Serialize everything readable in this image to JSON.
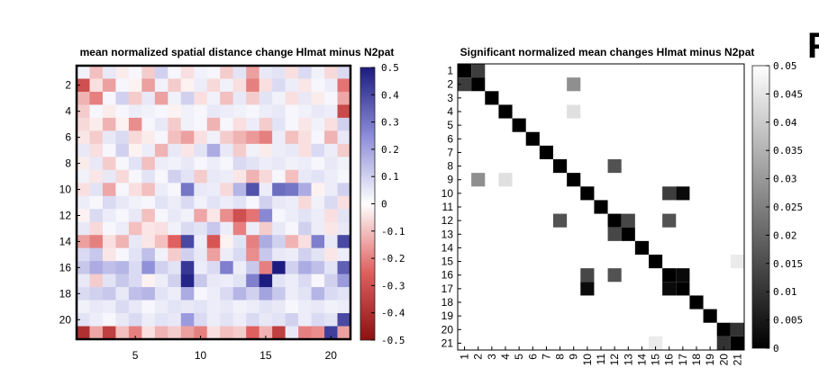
{
  "figure_letter": "F",
  "chart_data": [
    {
      "type": "heatmap",
      "title": "mean normalized spatial distance change Hlmat minus N2pat",
      "n": 21,
      "x_ticks": [
        5,
        10,
        15,
        20
      ],
      "y_ticks": [
        2,
        4,
        6,
        8,
        10,
        12,
        14,
        16,
        18,
        20
      ],
      "clim": [
        -0.5,
        0.5
      ],
      "colormap": "red-white-blue (negative red, positive blue)",
      "colorbar_ticks": [
        {
          "v": 0.5,
          "label": "0.5"
        },
        {
          "v": 0.4,
          "label": "0.4"
        },
        {
          "v": 0.3,
          "label": "0.3"
        },
        {
          "v": 0.2,
          "label": "0.2"
        },
        {
          "v": 0.1,
          "label": "0.1"
        },
        {
          "v": 0,
          "label": "0"
        },
        {
          "v": -0.1,
          "label": "-0.1"
        },
        {
          "v": -0.2,
          "label": "-0.2"
        },
        {
          "v": -0.3,
          "label": "-0.3"
        },
        {
          "v": -0.4,
          "label": "-0.4"
        },
        {
          "v": -0.5,
          "label": "-0.5"
        }
      ],
      "values": [
        [
          0.03,
          -0.1,
          0.05,
          -0.03,
          0.02,
          -0.08,
          0.1,
          0.02,
          -0.05,
          0.03,
          0.02,
          -0.08,
          0.06,
          -0.15,
          0.05,
          0.06,
          -0.05,
          0.08,
          0.03,
          -0.06,
          0.08
        ],
        [
          -0.3,
          -0.05,
          -0.15,
          0.02,
          -0.02,
          -0.15,
          0.03,
          -0.08,
          -0.02,
          0.04,
          -0.06,
          0.03,
          -0.05,
          -0.2,
          -0.05,
          0.08,
          0.04,
          -0.04,
          0.02,
          0.04,
          -0.22
        ],
        [
          -0.12,
          -0.2,
          0.02,
          0.1,
          -0.08,
          0.05,
          -0.15,
          0.03,
          0.1,
          -0.05,
          0.03,
          -0.1,
          0.05,
          -0.08,
          0.06,
          0.03,
          -0.05,
          0.05,
          -0.03,
          0.02,
          -0.14
        ],
        [
          -0.08,
          0.02,
          -0.03,
          0.02,
          0.04,
          0.03,
          0.02,
          -0.02,
          0.03,
          0.02,
          0.05,
          0.04,
          0.03,
          0.02,
          0.04,
          0.05,
          0.02,
          0.03,
          0.05,
          0.04,
          -0.32
        ],
        [
          -0.06,
          -0.03,
          -0.12,
          -0.02,
          -0.18,
          0.02,
          0.05,
          -0.08,
          0.03,
          0.02,
          -0.12,
          0.02,
          -0.05,
          0.04,
          -0.08,
          0.06,
          0.02,
          -0.04,
          0.03,
          -0.05,
          0.1
        ],
        [
          -0.04,
          -0.08,
          0.05,
          0.08,
          -0.06,
          -0.03,
          0.02,
          -0.1,
          -0.15,
          -0.05,
          0.03,
          -0.08,
          -0.12,
          -0.16,
          -0.2,
          0.04,
          -0.1,
          -0.05,
          0.02,
          -0.12,
          0.05
        ],
        [
          0.05,
          -0.05,
          0.02,
          0.1,
          -0.02,
          0.04,
          -0.12,
          0.05,
          -0.04,
          0.06,
          0.18,
          0.05,
          -0.08,
          0.03,
          -0.03,
          0.04,
          0.05,
          -0.05,
          0.08,
          0.04,
          -0.08
        ],
        [
          -0.03,
          0.05,
          -0.08,
          0.02,
          0.06,
          -0.1,
          0.04,
          0.03,
          0.05,
          0.02,
          0.04,
          0.02,
          0.08,
          0.06,
          0.04,
          0.05,
          0.03,
          0.04,
          0.02,
          0.05,
          0.03
        ],
        [
          0.03,
          -0.04,
          0.05,
          -0.06,
          0.02,
          0.06,
          0.02,
          0.1,
          0.06,
          -0.08,
          0.05,
          0.04,
          -0.04,
          -0.12,
          -0.06,
          0.02,
          -0.1,
          0.05,
          0.06,
          0.04,
          0.02
        ],
        [
          -0.05,
          0.06,
          -0.14,
          0.02,
          -0.05,
          -0.1,
          0.04,
          0.02,
          0.3,
          0.05,
          0.04,
          -0.06,
          0.16,
          0.38,
          0.04,
          0.32,
          0.3,
          0.18,
          -0.02,
          0.04,
          0.1
        ],
        [
          0.04,
          0.02,
          0.08,
          0.05,
          0.03,
          0.02,
          0.06,
          0.04,
          0.08,
          0.03,
          0.06,
          0.04,
          0.06,
          0.02,
          0.1,
          0.05,
          0.04,
          -0.06,
          0.03,
          0.08,
          -0.05
        ],
        [
          -0.02,
          0.08,
          0.04,
          0.02,
          0.05,
          -0.1,
          0.02,
          0.05,
          0.03,
          -0.14,
          -0.04,
          -0.18,
          -0.3,
          -0.22,
          0.26,
          0.02,
          0.04,
          0.06,
          0.04,
          -0.05,
          0.06
        ],
        [
          0.05,
          -0.06,
          0.02,
          0.04,
          -0.1,
          -0.04,
          -0.05,
          0.03,
          0.08,
          0.06,
          0.12,
          0.04,
          -0.2,
          0.04,
          -0.08,
          0.05,
          0.02,
          0.1,
          0.04,
          -0.04,
          0.05
        ],
        [
          -0.15,
          -0.2,
          -0.05,
          -0.12,
          0.05,
          -0.04,
          -0.1,
          -0.25,
          0.4,
          0.04,
          -0.28,
          -0.02,
          0.06,
          -0.2,
          0.18,
          0.1,
          -0.12,
          -0.05,
          0.28,
          0.05,
          0.4
        ],
        [
          0.08,
          0.12,
          -0.04,
          0.02,
          0.06,
          0.14,
          0.03,
          -0.08,
          0.1,
          0.05,
          -0.15,
          0.04,
          0.08,
          -0.18,
          0.12,
          0.05,
          0.04,
          0.1,
          0.06,
          -0.04,
          0.04
        ],
        [
          0.12,
          0.18,
          0.14,
          0.16,
          0.08,
          0.24,
          0.1,
          0.06,
          0.44,
          0.04,
          0.08,
          0.28,
          0.04,
          0.12,
          -0.2,
          0.56,
          0.1,
          0.18,
          0.14,
          0.06,
          0.35
        ],
        [
          0.05,
          -0.08,
          0.06,
          0.12,
          0.08,
          -0.02,
          0.04,
          0.1,
          0.48,
          0.12,
          0.05,
          0.04,
          0.06,
          0.28,
          0.52,
          0.06,
          0.04,
          0.08,
          0.02,
          0.1,
          0.22
        ],
        [
          0.08,
          0.1,
          0.12,
          0.05,
          0.14,
          0.16,
          0.06,
          0.04,
          0.18,
          0.02,
          0.04,
          0.08,
          0.16,
          0.1,
          0.2,
          0.12,
          0.04,
          0.06,
          0.16,
          0.08,
          0.06
        ],
        [
          0.03,
          0.05,
          0.04,
          0.08,
          0.05,
          0.02,
          0.04,
          0.06,
          0.05,
          0.06,
          0.04,
          0.05,
          0.03,
          0.04,
          0.06,
          0.05,
          0.02,
          0.04,
          0.05,
          0.03,
          0.04
        ],
        [
          0.06,
          0.04,
          0.02,
          0.05,
          0.08,
          0.04,
          0.06,
          0.05,
          0.22,
          0.08,
          0.04,
          0.06,
          0.04,
          0.08,
          0.05,
          0.06,
          0.1,
          0.04,
          0.08,
          0.06,
          0.4
        ],
        [
          -0.4,
          -0.14,
          -0.35,
          -0.1,
          -0.2,
          -0.05,
          -0.12,
          -0.08,
          -0.15,
          -0.2,
          -0.05,
          -0.1,
          -0.08,
          -0.25,
          -0.12,
          -0.35,
          0.05,
          -0.2,
          -0.18,
          0.42,
          -0.15
        ]
      ]
    },
    {
      "type": "heatmap",
      "title": "Significant normalized mean changes Hlmat minus N2pat",
      "n": 21,
      "x_ticks": [
        "1",
        "2",
        "3",
        "4",
        "5",
        "6",
        "7",
        "8",
        "9",
        "10",
        "11",
        "12",
        "13",
        "14",
        "15",
        "16",
        "17",
        "18",
        "19",
        "20",
        "21"
      ],
      "y_ticks": [
        "1",
        "2",
        "3",
        "4",
        "5",
        "6",
        "7",
        "8",
        "9",
        "10",
        "11",
        "12",
        "13",
        "14",
        "15",
        "16",
        "17",
        "18",
        "19",
        "20",
        "21"
      ],
      "clim": [
        0,
        0.05
      ],
      "colormap": "gray (0 black, 0.05 white); non-significant cells white",
      "colorbar_ticks": [
        {
          "v": 0.05,
          "label": "0.05"
        },
        {
          "v": 0.045,
          "label": "0.045"
        },
        {
          "v": 0.04,
          "label": "0.04"
        },
        {
          "v": 0.035,
          "label": "0.035"
        },
        {
          "v": 0.03,
          "label": "0.03"
        },
        {
          "v": 0.025,
          "label": "0.025"
        },
        {
          "v": 0.02,
          "label": "0.02"
        },
        {
          "v": 0.015,
          "label": "0.015"
        },
        {
          "v": 0.01,
          "label": "0.01"
        },
        {
          "v": 0.005,
          "label": "0.005"
        },
        {
          "v": 0,
          "label": "0"
        }
      ],
      "significant_cells": [
        {
          "row": 1,
          "col": 1,
          "p": 0.0
        },
        {
          "row": 1,
          "col": 2,
          "p": 0.012
        },
        {
          "row": 2,
          "col": 1,
          "p": 0.012
        },
        {
          "row": 2,
          "col": 2,
          "p": 0.0
        },
        {
          "row": 2,
          "col": 9,
          "p": 0.028
        },
        {
          "row": 3,
          "col": 3,
          "p": 0.0
        },
        {
          "row": 4,
          "col": 4,
          "p": 0.0
        },
        {
          "row": 4,
          "col": 9,
          "p": 0.044
        },
        {
          "row": 5,
          "col": 5,
          "p": 0.0
        },
        {
          "row": 6,
          "col": 6,
          "p": 0.0
        },
        {
          "row": 7,
          "col": 7,
          "p": 0.0
        },
        {
          "row": 8,
          "col": 8,
          "p": 0.0
        },
        {
          "row": 8,
          "col": 12,
          "p": 0.016
        },
        {
          "row": 9,
          "col": 2,
          "p": 0.028
        },
        {
          "row": 9,
          "col": 4,
          "p": 0.044
        },
        {
          "row": 9,
          "col": 9,
          "p": 0.0
        },
        {
          "row": 10,
          "col": 10,
          "p": 0.0
        },
        {
          "row": 10,
          "col": 16,
          "p": 0.012
        },
        {
          "row": 10,
          "col": 17,
          "p": 0.002
        },
        {
          "row": 11,
          "col": 11,
          "p": 0.0
        },
        {
          "row": 12,
          "col": 8,
          "p": 0.016
        },
        {
          "row": 12,
          "col": 12,
          "p": 0.0
        },
        {
          "row": 12,
          "col": 13,
          "p": 0.014
        },
        {
          "row": 12,
          "col": 16,
          "p": 0.016
        },
        {
          "row": 13,
          "col": 12,
          "p": 0.014
        },
        {
          "row": 13,
          "col": 13,
          "p": 0.0
        },
        {
          "row": 14,
          "col": 14,
          "p": 0.0
        },
        {
          "row": 15,
          "col": 15,
          "p": 0.0
        },
        {
          "row": 15,
          "col": 21,
          "p": 0.046
        },
        {
          "row": 16,
          "col": 10,
          "p": 0.014
        },
        {
          "row": 16,
          "col": 12,
          "p": 0.016
        },
        {
          "row": 16,
          "col": 16,
          "p": 0.0
        },
        {
          "row": 16,
          "col": 17,
          "p": 0.002
        },
        {
          "row": 17,
          "col": 10,
          "p": 0.002
        },
        {
          "row": 17,
          "col": 16,
          "p": 0.002
        },
        {
          "row": 17,
          "col": 17,
          "p": 0.0
        },
        {
          "row": 18,
          "col": 18,
          "p": 0.0
        },
        {
          "row": 19,
          "col": 19,
          "p": 0.0
        },
        {
          "row": 20,
          "col": 20,
          "p": 0.0
        },
        {
          "row": 20,
          "col": 21,
          "p": 0.01
        },
        {
          "row": 21,
          "col": 15,
          "p": 0.046
        },
        {
          "row": 21,
          "col": 20,
          "p": 0.01
        },
        {
          "row": 21,
          "col": 21,
          "p": 0.0
        }
      ]
    }
  ]
}
